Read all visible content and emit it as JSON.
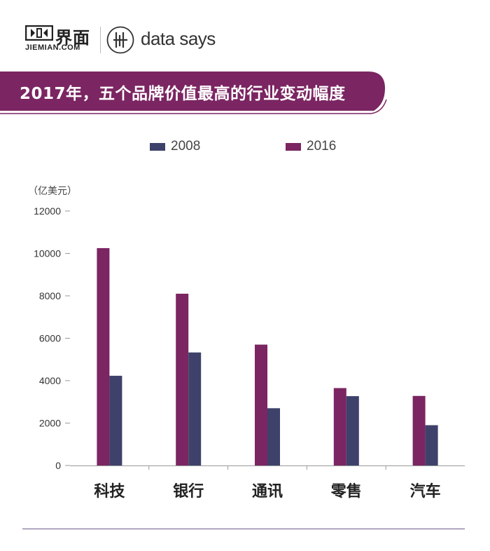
{
  "header": {
    "jiemian_cn": "界面",
    "jiemian_en": "JIEMIAN.COM",
    "datasays": "data says"
  },
  "banner": {
    "title": "2017年，五个品牌价值最高的行业变动幅度",
    "color": "#7b2562"
  },
  "unit": "（亿美元）",
  "colors": {
    "s2008": "#3e426a",
    "s2016": "#7b2562"
  },
  "chart_data": {
    "type": "bar",
    "title": "2017年，五个品牌价值最高的行业变动幅度",
    "ylabel": "（亿美元）",
    "xlabel": "",
    "categories": [
      "科技",
      "银行",
      "通讯",
      "零售",
      "汽车"
    ],
    "series": [
      {
        "name": "2016",
        "values": [
          10250,
          8100,
          5700,
          3650,
          3280
        ]
      },
      {
        "name": "2008",
        "values": [
          4230,
          5330,
          2700,
          3270,
          1900
        ]
      }
    ],
    "ylim": [
      0,
      12000
    ],
    "yticks": [
      "0",
      "2000",
      "4000",
      "6000",
      "8000",
      "10000",
      "12000"
    ],
    "legend": [
      "2008",
      "2016"
    ],
    "legend_position": "top",
    "grid": false
  }
}
